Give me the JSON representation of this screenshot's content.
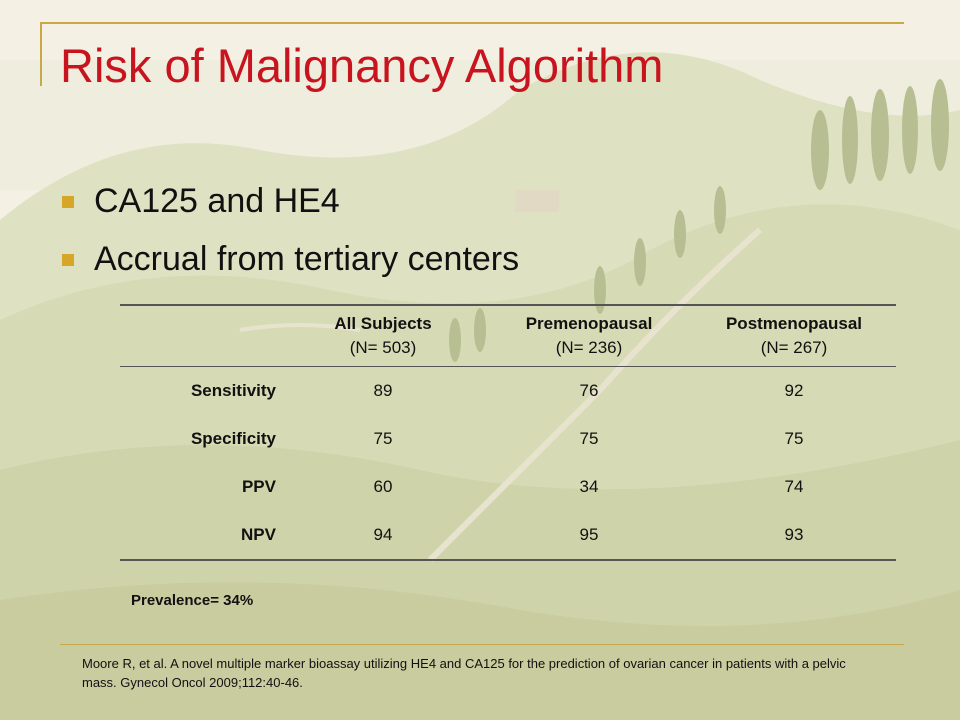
{
  "slide": {
    "title": "Risk of Malignancy Algorithm",
    "bullets": [
      "CA125 and HE4",
      "Accrual from tertiary centers"
    ]
  },
  "table": {
    "columns": [
      {
        "heading": "All Subjects",
        "subheading": "(N= 503)"
      },
      {
        "heading": "Premenopausal",
        "subheading": "(N= 236)"
      },
      {
        "heading": "Postmenopausal",
        "subheading": "(N= 267)"
      }
    ],
    "rows": [
      {
        "label": "Sensitivity",
        "values": [
          "89",
          "76",
          "92"
        ]
      },
      {
        "label": "Specificity",
        "values": [
          "75",
          "75",
          "75"
        ]
      },
      {
        "label": "PPV",
        "values": [
          "60",
          "34",
          "74"
        ]
      },
      {
        "label": "NPV",
        "values": [
          "94",
          "95",
          "93"
        ]
      }
    ],
    "highlight_color": "#d21818"
  },
  "prevalence": "Prevalence= 34%",
  "citation": "Moore R, et al. A novel multiple marker bioassay utilizing HE4 and CA125 for the prediction of ovarian cancer in patients with a pelvic mass. Gynecol Oncol 2009;112:40-46.",
  "colors": {
    "title": "#c8141e",
    "bullet": "#d6a626",
    "rule": "#c8a84a"
  }
}
